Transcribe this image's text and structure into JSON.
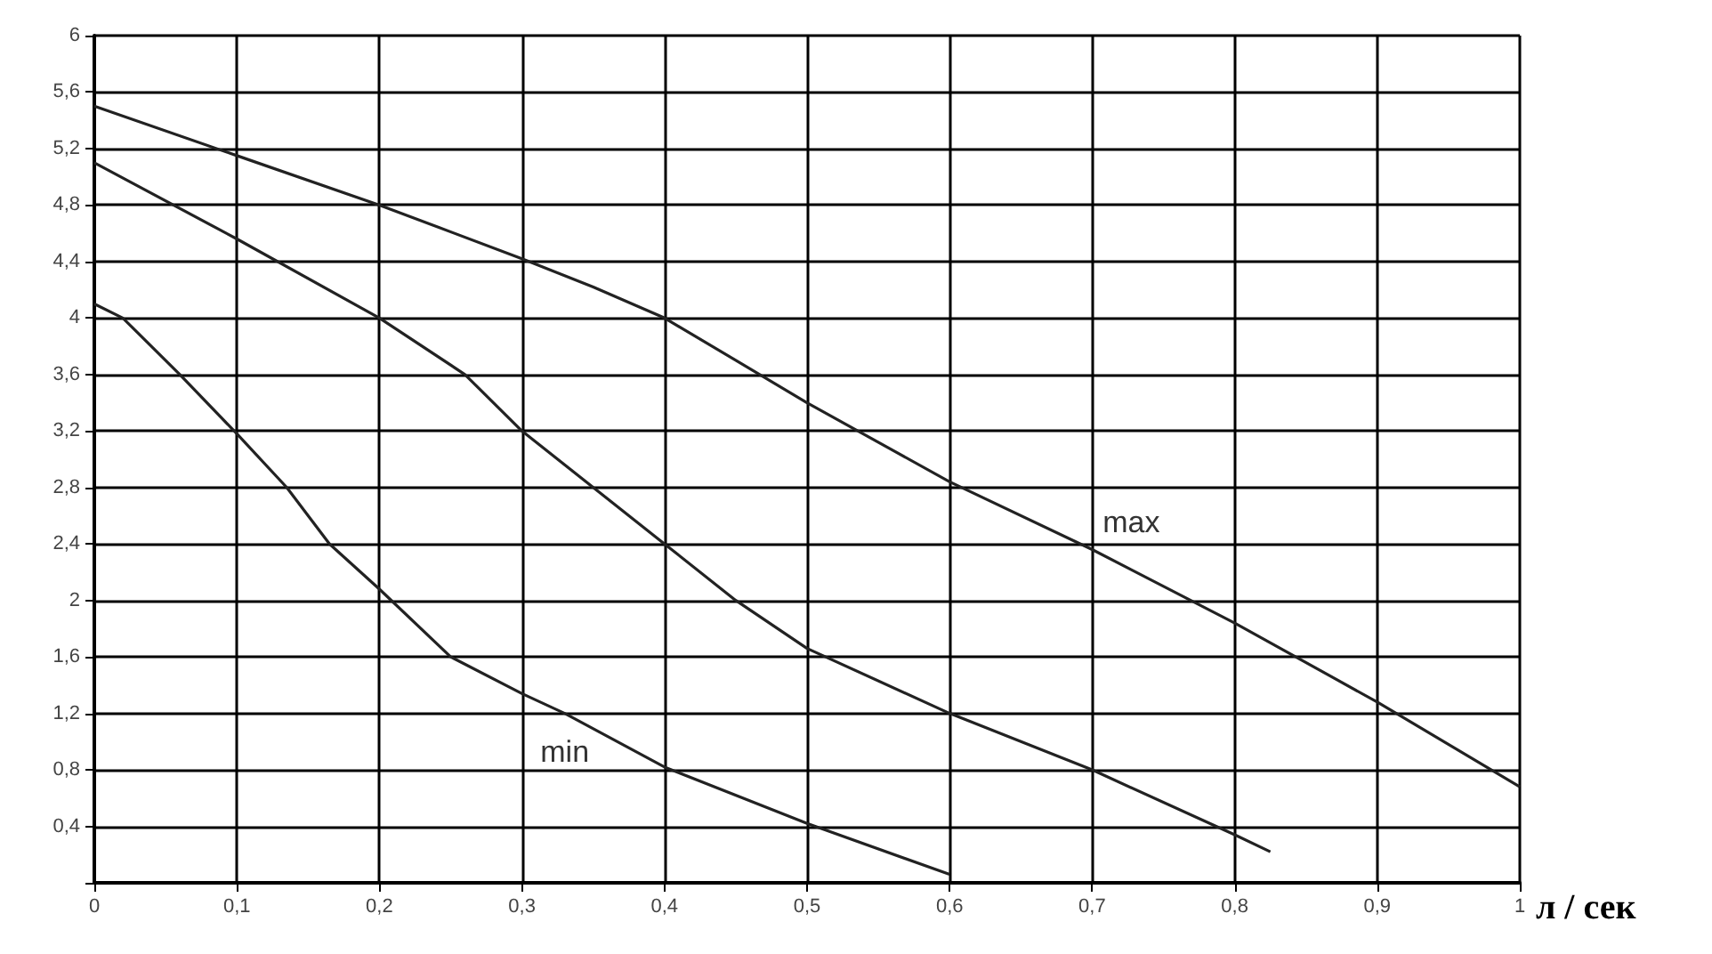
{
  "chart_data": {
    "type": "line",
    "xlabel": "л / сек",
    "series": [
      {
        "name": "max",
        "color": "#222222",
        "x": [
          0,
          0.1,
          0.2,
          0.3,
          0.35,
          0.4,
          0.45,
          0.5,
          0.6,
          0.7,
          0.8,
          0.9,
          1.0
        ],
        "values": [
          5.5,
          5.15,
          4.8,
          4.42,
          4.22,
          4.0,
          3.7,
          3.4,
          2.84,
          2.36,
          1.84,
          1.28,
          0.68
        ]
      },
      {
        "color": "#222222",
        "x": [
          0,
          0.1,
          0.2,
          0.26,
          0.3,
          0.35,
          0.4,
          0.45,
          0.5,
          0.6,
          0.7,
          0.8,
          0.825
        ],
        "values": [
          5.1,
          4.56,
          4.0,
          3.6,
          3.2,
          2.8,
          2.4,
          2.0,
          1.66,
          1.2,
          0.8,
          0.34,
          0.22
        ]
      },
      {
        "name": "min",
        "color": "#222222",
        "x": [
          0,
          0.02,
          0.06,
          0.1,
          0.135,
          0.165,
          0.2,
          0.25,
          0.3,
          0.33,
          0.4,
          0.5,
          0.6
        ],
        "values": [
          4.1,
          4.0,
          3.6,
          3.18,
          2.8,
          2.4,
          2.08,
          1.6,
          1.34,
          1.2,
          0.82,
          0.42,
          0.06
        ]
      }
    ],
    "xlim": [
      0,
      1
    ],
    "ylim": [
      0,
      6
    ],
    "xticks": [
      0,
      {
        "value": 0.1,
        "label": "0,1"
      },
      {
        "value": 0.2,
        "label": "0,2"
      },
      {
        "value": 0.3,
        "label": "0,3"
      },
      {
        "value": 0.4,
        "label": "0,4"
      },
      {
        "value": 0.5,
        "label": "0,5"
      },
      {
        "value": 0.6,
        "label": "0,6"
      },
      {
        "value": 0.7,
        "label": "0,7"
      },
      {
        "value": 0.8,
        "label": "0,8"
      },
      {
        "value": 0.9,
        "label": "0,9"
      },
      1
    ],
    "yticks": [
      {
        "value": 0,
        "label": null
      },
      {
        "value": 0.4,
        "label": "0,4"
      },
      {
        "value": 0.8,
        "label": "0,8"
      },
      {
        "value": 1.2,
        "label": "1,2"
      },
      {
        "value": 1.6,
        "label": "1,6"
      },
      2,
      {
        "value": 2.4,
        "label": "2,4"
      },
      {
        "value": 2.8,
        "label": "2,8"
      },
      {
        "value": 3.2,
        "label": "3,2"
      },
      {
        "value": 3.6,
        "label": "3,6"
      },
      4,
      {
        "value": 4.4,
        "label": "4,4"
      },
      {
        "value": 4.8,
        "label": "4,8"
      },
      {
        "value": 5.2,
        "label": "5,2"
      },
      {
        "value": 5.6,
        "label": "5,6"
      },
      6
    ],
    "grid": true,
    "legend": false,
    "marker": "none",
    "line_style": "solid"
  }
}
